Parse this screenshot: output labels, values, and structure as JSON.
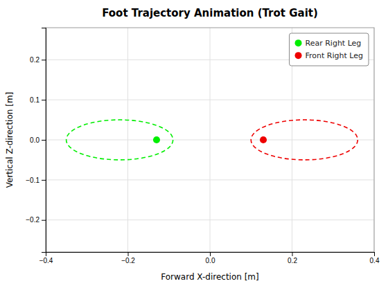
{
  "chart_data": {
    "type": "scatter",
    "title": "Foot Trajectory Animation (Trot Gait)",
    "x_label": "Forward X-direction [m]",
    "y_label": "Vertical Z-direction [m]",
    "xlim": [
      -0.4,
      0.4
    ],
    "ylim": [
      -0.28,
      0.28
    ],
    "xticks": [
      {
        "value": -0.4,
        "label": "−0.4"
      },
      {
        "value": -0.2,
        "label": "−0.2"
      },
      {
        "value": 0.0,
        "label": "0.0"
      },
      0.2,
      0.4
    ],
    "yticks": [
      {
        "value": -0.2,
        "label": "−0.2"
      },
      {
        "value": -0.1,
        "label": "−0.1"
      },
      {
        "value": 0.0,
        "label": "0.0"
      },
      0.1,
      0.2
    ],
    "grid": true,
    "legend": "upper right",
    "series": [
      {
        "name": "Rear Right Leg",
        "color": "#00ee00",
        "marker": "circle",
        "line_style": "dashed",
        "x": [
          -0.13
        ],
        "values": [
          0.0
        ],
        "ellipse_center_x": -0.22,
        "ellipse_center_z": 0.0,
        "ellipse_width": 0.26,
        "ellipse_height": 0.1
      },
      {
        "name": "Front Right Leg",
        "color": "#ee0000",
        "marker": "circle",
        "line_style": "dashed",
        "x": [
          0.13
        ],
        "values": [
          0.0
        ],
        "ellipse_center_x": 0.23,
        "ellipse_center_z": 0.0,
        "ellipse_width": 0.26,
        "ellipse_height": 0.1
      }
    ]
  }
}
